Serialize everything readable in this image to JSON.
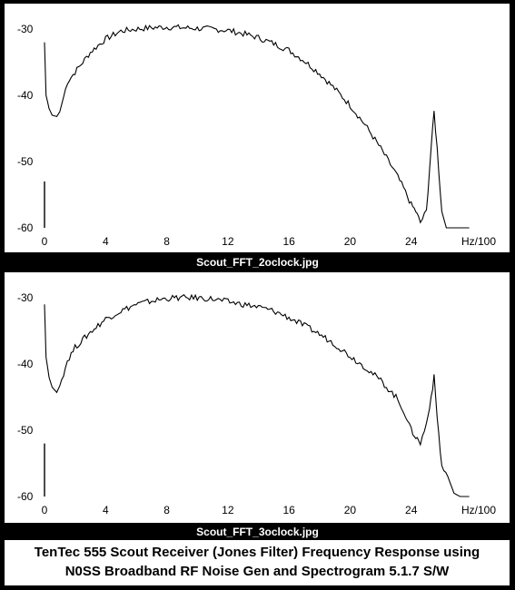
{
  "chart_data": [
    {
      "type": "line",
      "caption": "Scout_FFT_2oclock.jpg",
      "x_ticks": [
        "0",
        "4",
        "8",
        "12",
        "16",
        "20",
        "24"
      ],
      "x_unit": "Hz/100",
      "y_ticks": [
        "-30",
        "-40",
        "-50",
        "-60"
      ],
      "xlim": [
        0,
        28
      ],
      "ylim": [
        -60,
        -30
      ],
      "series": [
        {
          "x": [
            0,
            0.1,
            0.3,
            0.5,
            0.8,
            1.0,
            1.5,
            2,
            3,
            4,
            5,
            6,
            7,
            8,
            9,
            10,
            11,
            12,
            13,
            14,
            15,
            16,
            17,
            18,
            19,
            20,
            21,
            22,
            23,
            23.5,
            24,
            24.3,
            24.6,
            25,
            25.3,
            25.5,
            25.7,
            26,
            26.3,
            26.8,
            27.8
          ],
          "y": [
            -32,
            -40,
            -42,
            -43,
            -43.2,
            -42.5,
            -38,
            -36.5,
            -33.5,
            -31.5,
            -30.3,
            -30,
            -29.8,
            -29.7,
            -29.8,
            -29.9,
            -30,
            -30.2,
            -30.7,
            -31.3,
            -32.2,
            -33.2,
            -34.8,
            -36.7,
            -39,
            -41.5,
            -44.5,
            -48,
            -51.8,
            -54,
            -56.5,
            -57.5,
            -59.2,
            -57.5,
            -48,
            -42.5,
            -48,
            -57.5,
            -60,
            -60,
            -60
          ]
        }
      ],
      "spikes": [
        {
          "x": 0,
          "y": -53
        }
      ]
    },
    {
      "type": "line",
      "caption": "Scout_FFT_3oclock.jpg",
      "x_ticks": [
        "0",
        "4",
        "8",
        "12",
        "16",
        "20",
        "24"
      ],
      "x_unit": "Hz/100",
      "y_ticks": [
        "-30",
        "-40",
        "-50",
        "-60"
      ],
      "xlim": [
        0,
        28
      ],
      "ylim": [
        -60,
        -30
      ],
      "series": [
        {
          "x": [
            0,
            0.1,
            0.3,
            0.5,
            0.8,
            1.0,
            1.5,
            2,
            3,
            4,
            5,
            6,
            7,
            8,
            9,
            10,
            11,
            12,
            13,
            14,
            15,
            16,
            17,
            18,
            19,
            20,
            21,
            22,
            23,
            23.5,
            24,
            24.3,
            24.6,
            25,
            25.3,
            25.5,
            25.7,
            26,
            26.4,
            26.8,
            27.2,
            27.8
          ],
          "y": [
            -31,
            -39,
            -42,
            -43.5,
            -44.3,
            -43.3,
            -39.5,
            -37.5,
            -35.2,
            -33.2,
            -32,
            -31,
            -30.5,
            -30.1,
            -30,
            -30,
            -30.2,
            -30.6,
            -31,
            -31.4,
            -32,
            -33,
            -34.2,
            -35.5,
            -37,
            -38.8,
            -40.5,
            -42.5,
            -45,
            -47,
            -50,
            -51,
            -52,
            -49,
            -45,
            -42,
            -48,
            -55.5,
            -57,
            -59.5,
            -60,
            -60
          ]
        }
      ],
      "spikes": [
        {
          "x": 0,
          "y": -52
        }
      ]
    }
  ],
  "footer": {
    "line1": "TenTec 555 Scout Receiver (Jones Filter) Frequency Response using",
    "line2": "N0SS Broadband RF Noise Gen and Spectrogram 5.1.7 S/W"
  }
}
